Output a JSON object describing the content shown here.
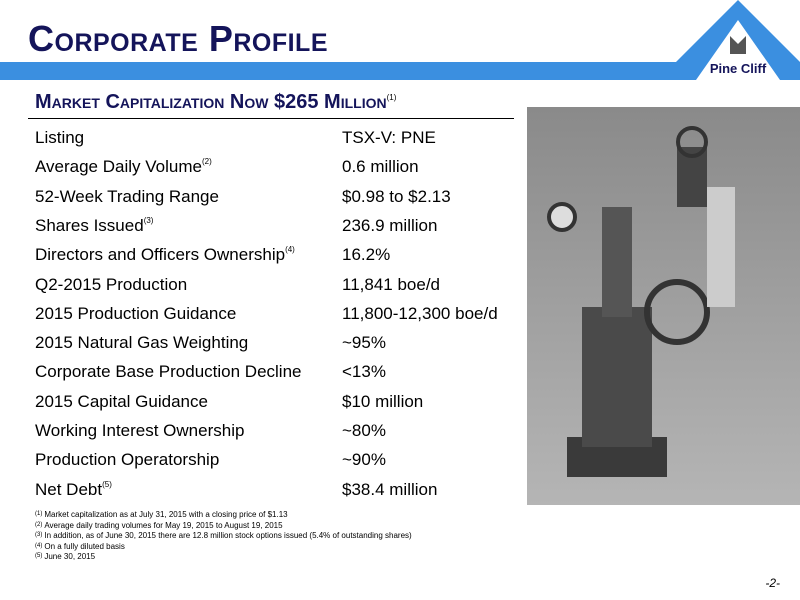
{
  "header": {
    "title": "Corporate Profile",
    "logo_text": "Pine Cliff"
  },
  "subtitle": {
    "text": "Market Capitalization Now $265 Million",
    "note": "(1)"
  },
  "table": {
    "rows": [
      {
        "label": "Listing",
        "note": null,
        "value": "TSX-V: PNE"
      },
      {
        "label": "Average Daily Volume",
        "note": "(2)",
        "value": "0.6 million"
      },
      {
        "label": "52-Week Trading Range",
        "note": null,
        "value": "$0.98 to $2.13"
      },
      {
        "label": "Shares Issued",
        "note": "(3)",
        "value": "236.9 million"
      },
      {
        "label": "Directors and Officers Ownership",
        "note": "(4)",
        "value": "16.2%"
      },
      {
        "label": "Q2-2015 Production",
        "note": null,
        "value": "11,841 boe/d"
      },
      {
        "label": "2015 Production Guidance",
        "note": null,
        "value": "11,800-12,300 boe/d"
      },
      {
        "label": "2015 Natural Gas Weighting",
        "note": null,
        "value": "~95%"
      },
      {
        "label": "Corporate Base Production Decline",
        "note": null,
        "value": "<13%"
      },
      {
        "label": "2015 Capital Guidance",
        "note": null,
        "value": "$10 million"
      },
      {
        "label": "Working Interest Ownership",
        "note": null,
        "value": "~80%"
      },
      {
        "label": "Production Operatorship",
        "note": null,
        "value": "~90%"
      },
      {
        "label": "Net Debt",
        "note": "(5)",
        "value": "$38.4 million"
      }
    ]
  },
  "footnotes": [
    {
      "mark": "(1)",
      "text": "Market capitalization as at July 31, 2015 with a closing price of $1.13"
    },
    {
      "mark": "(2)",
      "text": "Average daily trading volumes for May 19, 2015 to August 19, 2015"
    },
    {
      "mark": "(3)",
      "text": "In addition, as of June 30, 2015 there are 12.8 million stock options issued (5.4% of outstanding shares)"
    },
    {
      "mark": "(4)",
      "text": "On a fully diluted basis"
    },
    {
      "mark": "(5)",
      "text": "June 30, 2015"
    }
  ],
  "page_number": "-2-"
}
